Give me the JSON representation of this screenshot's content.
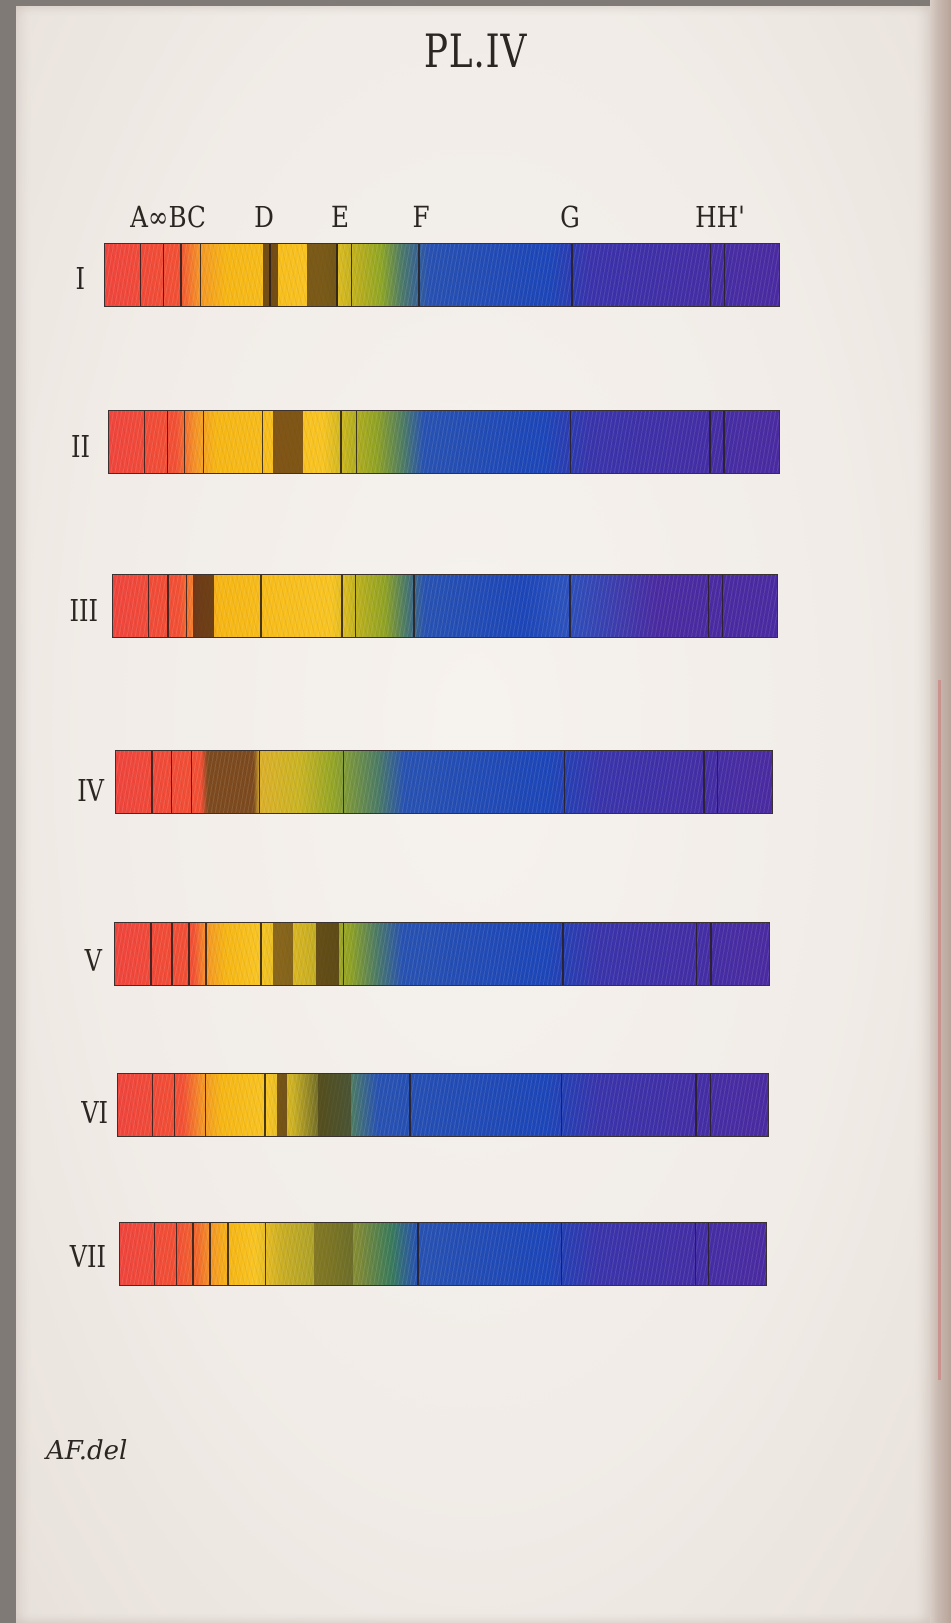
{
  "plate": {
    "title": "PL.IV",
    "signature": "AF.del"
  },
  "line_labels": [
    "A",
    "a",
    "B",
    "C",
    "D",
    "E",
    "F",
    "G",
    "H",
    "H'"
  ],
  "header_label_text": {
    "abc": "A∞BC",
    "d": "D",
    "e": "E",
    "f": "F",
    "g": "G",
    "h": "HH'"
  },
  "spectra": [
    {
      "numeral": "I"
    },
    {
      "numeral": "II"
    },
    {
      "numeral": "III"
    },
    {
      "numeral": "IV"
    },
    {
      "numeral": "V"
    },
    {
      "numeral": "VI"
    },
    {
      "numeral": "VII"
    }
  ],
  "colors": {
    "red": "#e9473f",
    "orange": "#f07a2e",
    "yellow": "#f3b61c",
    "green": "#8fa12a",
    "blue": "#1f46b3",
    "violet": "#4a2c9c",
    "ink": "#2c2622",
    "paper": "#f3eee9"
  }
}
